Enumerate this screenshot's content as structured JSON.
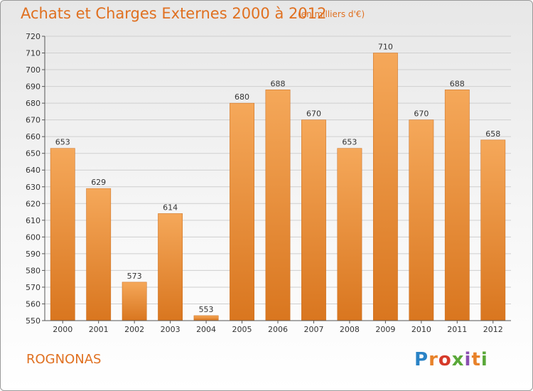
{
  "header": {
    "title": "Achats et Charges Externes 2000 à 2012",
    "unit": "(en milliers d'€)"
  },
  "footer": {
    "place": "ROGNONAS",
    "logo_text": "Proxiti"
  },
  "colors": {
    "accent": "#e07020",
    "bar_top": "#f5a85a",
    "bar_bottom": "#d9761f"
  },
  "chart_data": {
    "type": "bar",
    "title": "Achats et Charges Externes 2000 à 2012",
    "subtitle": "(en milliers d'€)",
    "xlabel": "",
    "ylabel": "",
    "categories": [
      "2000",
      "2001",
      "2002",
      "2003",
      "2004",
      "2005",
      "2006",
      "2007",
      "2008",
      "2009",
      "2010",
      "2011",
      "2012"
    ],
    "values": [
      653,
      629,
      573,
      614,
      553,
      680,
      688,
      670,
      653,
      710,
      670,
      688,
      658
    ],
    "ylim": [
      550,
      720
    ],
    "ytick_step": 10,
    "grid": "horizontal",
    "data_labels": true
  }
}
